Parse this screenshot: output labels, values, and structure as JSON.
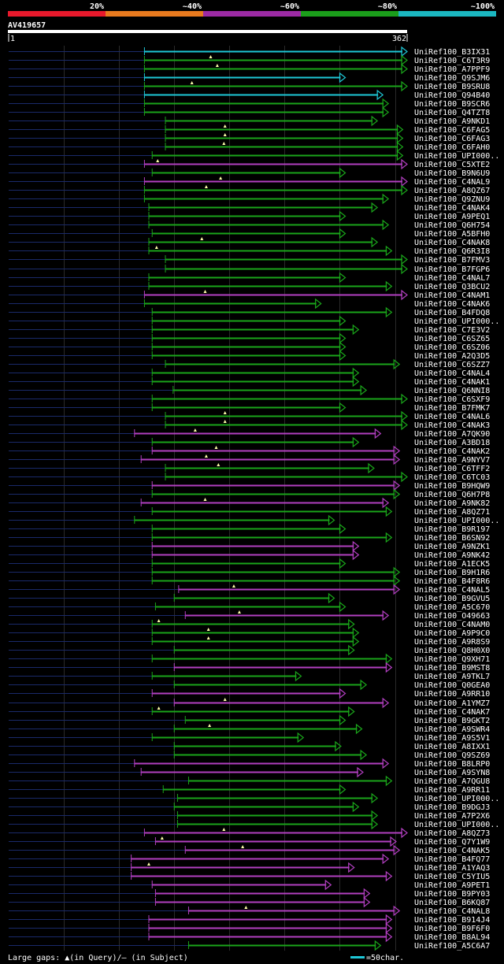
{
  "chart_data": {
    "type": "alignment",
    "title": "AV419657",
    "query_length": 362,
    "axis_start_label": "1",
    "axis_end_label": "362",
    "identity_scale": [
      {
        "label": "20%",
        "color": "#e8192c"
      },
      {
        "label": "~40%",
        "color": "#e87a1e"
      },
      {
        "label": "~60%",
        "color": "#9c2aa4"
      },
      {
        "label": "~80%",
        "color": "#1b9e1b"
      },
      {
        "label": "~100%",
        "color": "#1bb7c1"
      }
    ],
    "colors": {
      "cyan": "#1ec7d6",
      "green": "#1aa51a",
      "purple": "#b23fc0",
      "grid": "#2a2a2a",
      "stub": "#1a2a6a"
    },
    "footer_left": "Large gaps: ▲(in Query)/— (in Subject)",
    "footer_right": "=50char.",
    "hits": [
      {
        "name": "UniRef100_B3IX31",
        "start": 124,
        "end": 362,
        "color": "cyan"
      },
      {
        "name": "UniRef100_C6T3R9",
        "start": 124,
        "end": 362,
        "color": "green",
        "query_gap": 184
      },
      {
        "name": "UniRef100_A7PPF9",
        "start": 124,
        "end": 362,
        "color": "green",
        "query_gap": 190
      },
      {
        "name": "UniRef100_Q9SJM6",
        "start": 124,
        "end": 306,
        "color": "cyan"
      },
      {
        "name": "UniRef100_B9SRU8",
        "start": 124,
        "end": 362,
        "color": "green",
        "query_gap": 167
      },
      {
        "name": "UniRef100_Q94B40",
        "start": 124,
        "end": 340,
        "color": "cyan"
      },
      {
        "name": "UniRef100_B9SCR6",
        "start": 124,
        "end": 345,
        "color": "green"
      },
      {
        "name": "UniRef100_Q4TZT8",
        "start": 124,
        "end": 345,
        "color": "green"
      },
      {
        "name": "UniRef100_A9NKD1",
        "start": 143,
        "end": 335,
        "color": "green"
      },
      {
        "name": "UniRef100_C6FAG5",
        "start": 143,
        "end": 358,
        "color": "green",
        "query_gap": 197
      },
      {
        "name": "UniRef100_C6FAG3",
        "start": 143,
        "end": 358,
        "color": "green",
        "query_gap": 197
      },
      {
        "name": "UniRef100_C6FAH0",
        "start": 143,
        "end": 358,
        "color": "green",
        "query_gap": 196
      },
      {
        "name": "UniRef100_UPI000..",
        "start": 131,
        "end": 358,
        "color": "green"
      },
      {
        "name": "UniRef100_C5XTE2",
        "start": 124,
        "end": 362,
        "color": "purple",
        "query_gap": 136
      },
      {
        "name": "UniRef100_B9N6U9",
        "start": 131,
        "end": 306,
        "color": "green"
      },
      {
        "name": "UniRef100_C4NAL9",
        "start": 124,
        "end": 362,
        "color": "purple",
        "query_gap": 193
      },
      {
        "name": "UniRef100_A8QZ67",
        "start": 124,
        "end": 362,
        "color": "green",
        "query_gap": 180
      },
      {
        "name": "UniRef100_Q9ZNU9",
        "start": 124,
        "end": 345,
        "color": "green"
      },
      {
        "name": "UniRef100_C4NAK4",
        "start": 128,
        "end": 335,
        "color": "green"
      },
      {
        "name": "UniRef100_A9PEQ1",
        "start": 128,
        "end": 306,
        "color": "green"
      },
      {
        "name": "UniRef100_Q6H754",
        "start": 128,
        "end": 345,
        "color": "green"
      },
      {
        "name": "UniRef100_A5BFH0",
        "start": 131,
        "end": 306,
        "color": "green"
      },
      {
        "name": "UniRef100_C4NAK8",
        "start": 128,
        "end": 335,
        "color": "green",
        "query_gap": 176
      },
      {
        "name": "UniRef100_Q6R3I8",
        "start": 128,
        "end": 348,
        "color": "green",
        "query_gap": 135
      },
      {
        "name": "UniRef100_B7FMV3",
        "start": 143,
        "end": 362,
        "color": "green"
      },
      {
        "name": "UniRef100_B7FGP6",
        "start": 143,
        "end": 362,
        "color": "green"
      },
      {
        "name": "UniRef100_C4NAL7",
        "start": 128,
        "end": 306,
        "color": "green"
      },
      {
        "name": "UniRef100_Q3BCU2",
        "start": 128,
        "end": 348,
        "color": "green"
      },
      {
        "name": "UniRef100_C4NAM1",
        "start": 124,
        "end": 362,
        "color": "purple",
        "query_gap": 179
      },
      {
        "name": "UniRef100_C4NAK6",
        "start": 124,
        "end": 284,
        "color": "green"
      },
      {
        "name": "UniRef100_B4FDQ8",
        "start": 131,
        "end": 348,
        "color": "green"
      },
      {
        "name": "UniRef100_UPI000..",
        "start": 131,
        "end": 306,
        "color": "green"
      },
      {
        "name": "UniRef100_C7E3V2",
        "start": 131,
        "end": 318,
        "color": "green"
      },
      {
        "name": "UniRef100_C6SZ65",
        "start": 131,
        "end": 306,
        "color": "green"
      },
      {
        "name": "UniRef100_C6SZ06",
        "start": 131,
        "end": 306,
        "color": "green"
      },
      {
        "name": "UniRef100_A2Q3D5",
        "start": 131,
        "end": 306,
        "color": "green"
      },
      {
        "name": "UniRef100_C6SZZ7",
        "start": 143,
        "end": 355,
        "color": "green"
      },
      {
        "name": "UniRef100_C4NAL4",
        "start": 131,
        "end": 318,
        "color": "green"
      },
      {
        "name": "UniRef100_C4NAK1",
        "start": 131,
        "end": 318,
        "color": "green"
      },
      {
        "name": "UniRef100_Q6NNI8",
        "start": 150,
        "end": 325,
        "color": "green"
      },
      {
        "name": "UniRef100_C6SXF9",
        "start": 131,
        "end": 362,
        "color": "green"
      },
      {
        "name": "UniRef100_B7FMK7",
        "start": 131,
        "end": 306,
        "color": "green"
      },
      {
        "name": "UniRef100_C4NAL6",
        "start": 143,
        "end": 362,
        "color": "green",
        "query_gap": 197
      },
      {
        "name": "UniRef100_C4NAK3",
        "start": 143,
        "end": 362,
        "color": "green",
        "query_gap": 197
      },
      {
        "name": "UniRef100_A7QK90",
        "start": 115,
        "end": 338,
        "color": "purple",
        "query_gap": 170
      },
      {
        "name": "UniRef100_A3BD18",
        "start": 131,
        "end": 318,
        "color": "green"
      },
      {
        "name": "UniRef100_C4NAK2",
        "start": 131,
        "end": 355,
        "color": "purple",
        "query_gap": 189
      },
      {
        "name": "UniRef100_A9NYV7",
        "start": 121,
        "end": 355,
        "color": "purple",
        "query_gap": 180
      },
      {
        "name": "UniRef100_C6TFF2",
        "start": 143,
        "end": 332,
        "color": "green",
        "query_gap": 191
      },
      {
        "name": "UniRef100_C6TC03",
        "start": 143,
        "end": 362,
        "color": "green"
      },
      {
        "name": "UniRef100_B9HQW9",
        "start": 131,
        "end": 355,
        "color": "purple"
      },
      {
        "name": "UniRef100_Q6H7P8",
        "start": 131,
        "end": 355,
        "color": "green"
      },
      {
        "name": "UniRef100_A9NK82",
        "start": 121,
        "end": 345,
        "color": "purple",
        "query_gap": 179
      },
      {
        "name": "UniRef100_A8QZ71",
        "start": 131,
        "end": 348,
        "color": "green"
      },
      {
        "name": "UniRef100_UPI000..",
        "start": 115,
        "end": 296,
        "color": "green"
      },
      {
        "name": "UniRef100_B9R197",
        "start": 131,
        "end": 306,
        "color": "green"
      },
      {
        "name": "UniRef100_B6SN92",
        "start": 131,
        "end": 348,
        "color": "green"
      },
      {
        "name": "UniRef100_A9NZK1",
        "start": 131,
        "end": 318,
        "color": "purple"
      },
      {
        "name": "UniRef100_A9NK42",
        "start": 131,
        "end": 318,
        "color": "purple"
      },
      {
        "name": "UniRef100_A1ECK5",
        "start": 131,
        "end": 306,
        "color": "green"
      },
      {
        "name": "UniRef100_B9H1R6",
        "start": 131,
        "end": 355,
        "color": "green"
      },
      {
        "name": "UniRef100_B4F8R6",
        "start": 131,
        "end": 355,
        "color": "green"
      },
      {
        "name": "UniRef100_C4NAL5",
        "start": 155,
        "end": 355,
        "color": "purple",
        "query_gap": 205
      },
      {
        "name": "UniRef100_B9GVU5",
        "start": 151,
        "end": 296,
        "color": "green"
      },
      {
        "name": "UniRef100_A5C670",
        "start": 134,
        "end": 306,
        "color": "green"
      },
      {
        "name": "UniRef100_O49663",
        "start": 161,
        "end": 345,
        "color": "purple",
        "query_gap": 210
      },
      {
        "name": "UniRef100_C4NAM0",
        "start": 131,
        "end": 314,
        "color": "green",
        "query_gap": 137
      },
      {
        "name": "UniRef100_A9P9C0",
        "start": 131,
        "end": 318,
        "color": "green",
        "query_gap": 182
      },
      {
        "name": "UniRef100_A9R8S9",
        "start": 131,
        "end": 318,
        "color": "green",
        "query_gap": 182
      },
      {
        "name": "UniRef100_Q8H0X0",
        "start": 151,
        "end": 314,
        "color": "green"
      },
      {
        "name": "UniRef100_Q9XH71",
        "start": 131,
        "end": 348,
        "color": "green"
      },
      {
        "name": "UniRef100_B9MST8",
        "start": 151,
        "end": 348,
        "color": "purple"
      },
      {
        "name": "UniRef100_A9TKL7",
        "start": 131,
        "end": 266,
        "color": "green"
      },
      {
        "name": "UniRef100_Q0GEA0",
        "start": 151,
        "end": 325,
        "color": "green"
      },
      {
        "name": "UniRef100_A9RR10",
        "start": 131,
        "end": 306,
        "color": "purple"
      },
      {
        "name": "UniRef100_A1YMZ7",
        "start": 151,
        "end": 345,
        "color": "purple",
        "query_gap": 197
      },
      {
        "name": "UniRef100_C4NAK7",
        "start": 131,
        "end": 314,
        "color": "green",
        "query_gap": 137
      },
      {
        "name": "UniRef100_B9GKT2",
        "start": 161,
        "end": 306,
        "color": "green"
      },
      {
        "name": "UniRef100_A9SWR4",
        "start": 151,
        "end": 321,
        "color": "green",
        "query_gap": 183
      },
      {
        "name": "UniRef100_A9S5V1",
        "start": 131,
        "end": 268,
        "color": "green"
      },
      {
        "name": "UniRef100_A8IXX1",
        "start": 151,
        "end": 302,
        "color": "green"
      },
      {
        "name": "UniRef100_Q9SZ69",
        "start": 151,
        "end": 325,
        "color": "green"
      },
      {
        "name": "UniRef100_B8LRP0",
        "start": 115,
        "end": 345,
        "color": "purple"
      },
      {
        "name": "UniRef100_A9SYN8",
        "start": 121,
        "end": 322,
        "color": "purple"
      },
      {
        "name": "UniRef100_A7QGU8",
        "start": 164,
        "end": 348,
        "color": "green"
      },
      {
        "name": "UniRef100_A9RR11",
        "start": 141,
        "end": 306,
        "color": "green"
      },
      {
        "name": "UniRef100_UPI000..",
        "start": 154,
        "end": 335,
        "color": "green"
      },
      {
        "name": "UniRef100_B9DGJ3",
        "start": 151,
        "end": 318,
        "color": "green"
      },
      {
        "name": "UniRef100_A7P2X6",
        "start": 154,
        "end": 335,
        "color": "green"
      },
      {
        "name": "UniRef100_UPI000..",
        "start": 154,
        "end": 335,
        "color": "green"
      },
      {
        "name": "UniRef100_A8QZ73",
        "start": 124,
        "end": 362,
        "color": "purple",
        "query_gap": 196
      },
      {
        "name": "UniRef100_Q7Y1W9",
        "start": 134,
        "end": 352,
        "color": "purple",
        "query_gap": 140
      },
      {
        "name": "UniRef100_C4NAK5",
        "start": 161,
        "end": 355,
        "color": "purple",
        "query_gap": 213
      },
      {
        "name": "UniRef100_B4FQ77",
        "start": 112,
        "end": 345,
        "color": "purple"
      },
      {
        "name": "UniRef100_A1YAQ3",
        "start": 112,
        "end": 314,
        "color": "purple",
        "query_gap": 128
      },
      {
        "name": "UniRef100_C5YIU5",
        "start": 112,
        "end": 348,
        "color": "purple"
      },
      {
        "name": "UniRef100_A9PET1",
        "start": 131,
        "end": 293,
        "color": "purple"
      },
      {
        "name": "UniRef100_B9PY03",
        "start": 134,
        "end": 328,
        "color": "purple"
      },
      {
        "name": "UniRef100_B6KQ87",
        "start": 134,
        "end": 328,
        "color": "purple"
      },
      {
        "name": "UniRef100_C4NAL8",
        "start": 164,
        "end": 355,
        "color": "purple",
        "query_gap": 216
      },
      {
        "name": "UniRef100_B914J4",
        "start": 128,
        "end": 348,
        "color": "purple"
      },
      {
        "name": "UniRef100_B9F6F0",
        "start": 128,
        "end": 348,
        "color": "purple"
      },
      {
        "name": "UniRef100_B8AL94",
        "start": 128,
        "end": 348,
        "color": "purple"
      },
      {
        "name": "UniRef100_A5C6A7",
        "start": 164,
        "end": 338,
        "color": "green"
      }
    ]
  }
}
